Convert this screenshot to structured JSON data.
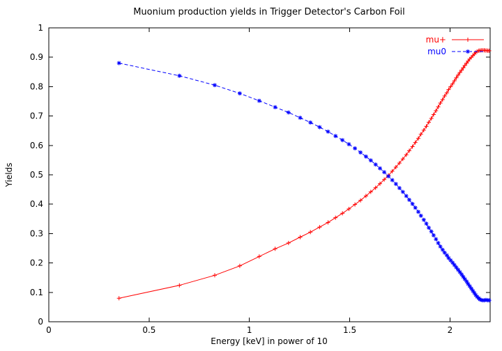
{
  "page": {
    "background": "#ffffff"
  },
  "chart_data": {
    "type": "line",
    "title": "Muonium production yields in Trigger Detector's Carbon Foil",
    "xlabel": "Energy [keV] in power of 10",
    "ylabel": "Yields",
    "xlim": [
      0,
      2.2
    ],
    "ylim": [
      0,
      1
    ],
    "grid": false,
    "legend_position": "top-right",
    "x_ticks": {
      "values": [
        0,
        0.5,
        1,
        1.5,
        2
      ],
      "labels": [
        "0",
        "0.5",
        "1",
        "1.5",
        "2"
      ]
    },
    "y_ticks": {
      "values": [
        0,
        0.1,
        0.2,
        0.3,
        0.4,
        0.5,
        0.6,
        0.7,
        0.8,
        0.9,
        1
      ],
      "labels": [
        "0",
        "0.1",
        "0.2",
        "0.3",
        "0.4",
        "0.5",
        "0.6",
        "0.7",
        "0.8",
        "0.9",
        "1"
      ]
    },
    "x": [
      0.35,
      0.651,
      0.827,
      0.952,
      1.049,
      1.128,
      1.195,
      1.253,
      1.304,
      1.35,
      1.392,
      1.429,
      1.464,
      1.496,
      1.526,
      1.554,
      1.581,
      1.605,
      1.629,
      1.651,
      1.672,
      1.693,
      1.712,
      1.73,
      1.748,
      1.765,
      1.782,
      1.797,
      1.813,
      1.827,
      1.842,
      1.855,
      1.869,
      1.882,
      1.894,
      1.907,
      1.918,
      1.93,
      1.941,
      1.952,
      1.963,
      1.973,
      1.984,
      1.993,
      2.003,
      2.013,
      2.022,
      2.031,
      2.04,
      2.049,
      2.058,
      2.066,
      2.074,
      2.083,
      2.09,
      2.098,
      2.106,
      2.114,
      2.121,
      2.128,
      2.135,
      2.143,
      2.149,
      2.156,
      2.163,
      2.17,
      2.176,
      2.183,
      2.189,
      2.195
    ],
    "series": [
      {
        "name": "mu+",
        "color": "#ff0000",
        "marker": "plus",
        "line": "solid",
        "values": [
          0.08,
          0.124,
          0.158,
          0.19,
          0.222,
          0.248,
          0.268,
          0.288,
          0.305,
          0.322,
          0.338,
          0.354,
          0.369,
          0.384,
          0.399,
          0.413,
          0.428,
          0.442,
          0.456,
          0.47,
          0.484,
          0.498,
          0.512,
          0.526,
          0.54,
          0.554,
          0.568,
          0.582,
          0.596,
          0.61,
          0.624,
          0.638,
          0.652,
          0.665,
          0.679,
          0.692,
          0.705,
          0.718,
          0.731,
          0.744,
          0.756,
          0.768,
          0.779,
          0.79,
          0.8,
          0.81,
          0.82,
          0.83,
          0.839,
          0.848,
          0.856,
          0.864,
          0.872,
          0.88,
          0.887,
          0.894,
          0.9,
          0.906,
          0.911,
          0.916,
          0.92,
          0.922,
          0.923,
          0.924,
          0.924,
          0.924,
          0.923,
          0.923,
          0.922,
          0.922
        ]
      },
      {
        "name": "mu0",
        "color": "#0000ff",
        "marker": "star",
        "line": "dashed",
        "values": [
          0.88,
          0.837,
          0.805,
          0.777,
          0.752,
          0.73,
          0.712,
          0.694,
          0.678,
          0.662,
          0.647,
          0.632,
          0.618,
          0.604,
          0.59,
          0.576,
          0.562,
          0.549,
          0.535,
          0.522,
          0.509,
          0.495,
          0.482,
          0.469,
          0.455,
          0.442,
          0.428,
          0.415,
          0.401,
          0.388,
          0.374,
          0.361,
          0.347,
          0.334,
          0.32,
          0.307,
          0.294,
          0.281,
          0.268,
          0.256,
          0.245,
          0.235,
          0.226,
          0.217,
          0.209,
          0.201,
          0.193,
          0.185,
          0.177,
          0.169,
          0.161,
          0.153,
          0.145,
          0.137,
          0.129,
          0.121,
          0.113,
          0.105,
          0.098,
          0.091,
          0.085,
          0.08,
          0.076,
          0.074,
          0.073,
          0.073,
          0.074,
          0.074,
          0.073,
          0.073
        ]
      }
    ]
  }
}
